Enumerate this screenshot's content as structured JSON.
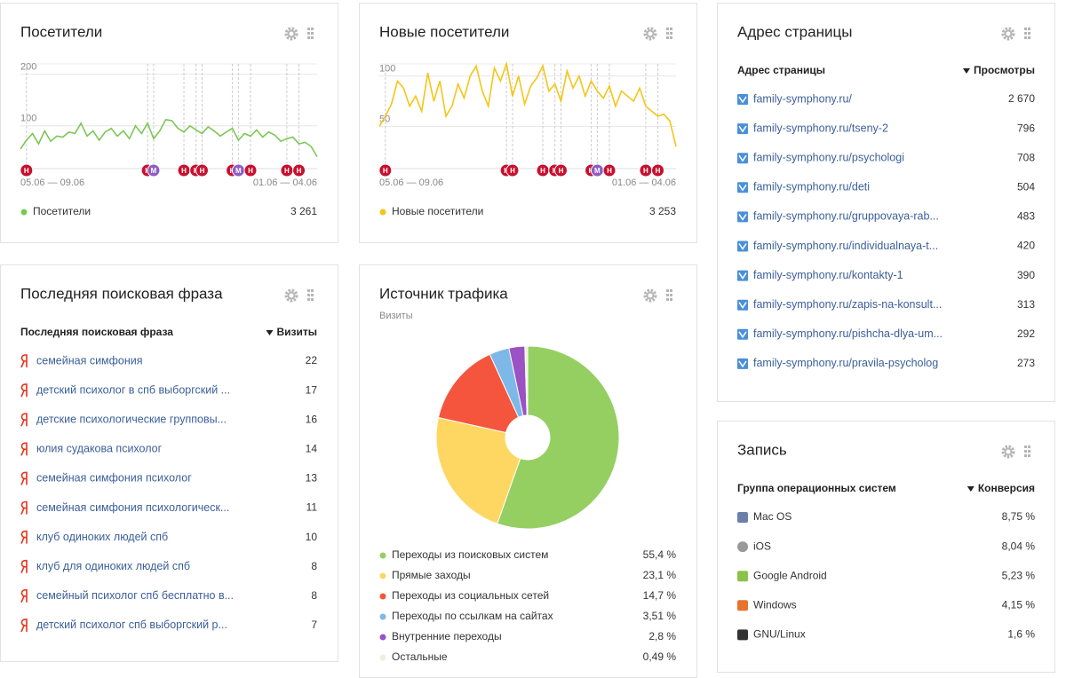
{
  "chart_data": [
    {
      "type": "line",
      "title": "Посетители",
      "categories": [
        "05.06 — 09.06",
        null,
        null,
        null,
        null,
        null,
        null,
        null,
        null,
        null,
        null,
        null,
        null,
        null,
        null,
        null,
        null,
        null,
        null,
        null,
        null,
        null,
        null,
        null,
        null,
        null,
        null,
        null,
        null,
        null,
        null,
        null,
        null,
        null,
        null,
        null,
        null,
        null,
        null,
        null,
        null,
        null,
        null,
        null,
        null,
        null,
        null,
        null,
        null,
        "01.06 — 04.06"
      ],
      "series": [
        {
          "name": "Посетители",
          "color": "#7cc756",
          "total": {
            "value": 3261,
            "label": "3 261"
          },
          "values": [
            55,
            72,
            85,
            65,
            90,
            70,
            80,
            78,
            88,
            85,
            105,
            80,
            90,
            72,
            88,
            95,
            80,
            90,
            75,
            100,
            85,
            105,
            75,
            90,
            112,
            110,
            95,
            88,
            100,
            92,
            85,
            98,
            90,
            80,
            88,
            95,
            72,
            85,
            80,
            92,
            78,
            88,
            82,
            70,
            75,
            78,
            65,
            68,
            60,
            40
          ]
        }
      ],
      "ylim": [
        17,
        220
      ],
      "yticks": [
        100,
        200
      ],
      "events": [
        {
          "x": 1,
          "label": "Н"
        },
        {
          "x": 21,
          "label": "Н"
        },
        {
          "x": 22,
          "label": "М"
        },
        {
          "x": 27,
          "label": "Н"
        },
        {
          "x": 29,
          "label": "Н"
        },
        {
          "x": 30,
          "label": "Н"
        },
        {
          "x": 35,
          "label": "Н"
        },
        {
          "x": 36,
          "label": "М"
        },
        {
          "x": 38,
          "label": "Н"
        },
        {
          "x": 44,
          "label": "Н"
        },
        {
          "x": 46,
          "label": "Н"
        }
      ]
    },
    {
      "type": "line",
      "title": "Новые посетители",
      "categories": [
        "05.06 — 09.06",
        null,
        null,
        null,
        null,
        null,
        null,
        null,
        null,
        null,
        null,
        null,
        null,
        null,
        null,
        null,
        null,
        null,
        null,
        null,
        null,
        null,
        null,
        null,
        null,
        null,
        null,
        null,
        null,
        null,
        null,
        null,
        null,
        null,
        null,
        null,
        null,
        null,
        null,
        null,
        null,
        null,
        null,
        null,
        null,
        null,
        null,
        null,
        null,
        "01.06 — 04.06"
      ],
      "series": [
        {
          "name": "Новые посетители",
          "color": "#f5c518",
          "total": {
            "value": 3253,
            "label": "3 253"
          },
          "values": [
            50,
            60,
            72,
            95,
            88,
            70,
            80,
            65,
            103,
            75,
            95,
            60,
            70,
            92,
            78,
            100,
            110,
            85,
            70,
            108,
            95,
            112,
            80,
            100,
            72,
            90,
            98,
            110,
            85,
            92,
            75,
            105,
            88,
            100,
            80,
            95,
            85,
            78,
            90,
            70,
            85,
            80,
            75,
            88,
            70,
            65,
            60,
            62,
            55,
            30
          ]
        }
      ],
      "ylim": [
        8,
        112
      ],
      "yticks": [
        50,
        100
      ],
      "events": [
        {
          "x": 1,
          "label": "Н"
        },
        {
          "x": 21,
          "label": "Н"
        },
        {
          "x": 22,
          "label": "Н"
        },
        {
          "x": 27,
          "label": "Н"
        },
        {
          "x": 29,
          "label": "Н"
        },
        {
          "x": 30,
          "label": "Н"
        },
        {
          "x": 35,
          "label": "Н"
        },
        {
          "x": 36,
          "label": "М"
        },
        {
          "x": 38,
          "label": "Н"
        },
        {
          "x": 44,
          "label": "Н"
        },
        {
          "x": 46,
          "label": "Н"
        }
      ]
    },
    {
      "type": "pie",
      "title": "Источник трафика",
      "subtitle": "Визиты",
      "categories": [
        "Переходы из поисковых систем",
        "Прямые заходы",
        "Переходы из социальных сетей",
        "Переходы по ссылкам на сайтах",
        "Внутренние переходы",
        "Остальные"
      ],
      "values": [
        55.4,
        23.1,
        14.7,
        3.51,
        2.8,
        0.49
      ],
      "value_labels": [
        "55,4 %",
        "23,1 %",
        "14,7 %",
        "3,51 %",
        "2,8 %",
        "0,49 %"
      ],
      "colors": [
        "#95cf62",
        "#fdd762",
        "#f4553c",
        "#7db8e8",
        "#9b52c2",
        "#eef0dd"
      ]
    }
  ],
  "pages_widget": {
    "title": "Адрес страницы",
    "columns": [
      "Адрес страницы",
      "Просмотры"
    ],
    "rows": [
      [
        "family-symphony.ru/",
        "2 670"
      ],
      [
        "family-symphony.ru/tseny-2",
        "796"
      ],
      [
        "family-symphony.ru/psychologi",
        "708"
      ],
      [
        "family-symphony.ru/deti",
        "504"
      ],
      [
        "family-symphony.ru/gruppovaya-rab...",
        "483"
      ],
      [
        "family-symphony.ru/individualnaya-t...",
        "420"
      ],
      [
        "family-symphony.ru/kontakty-1",
        "390"
      ],
      [
        "family-symphony.ru/zapis-na-konsult...",
        "313"
      ],
      [
        "family-symphony.ru/pishcha-dlya-um...",
        "292"
      ],
      [
        "family-symphony.ru/pravila-psycholog",
        "273"
      ]
    ]
  },
  "search_widget": {
    "title": "Последняя поисковая фраза",
    "columns": [
      "Последняя поисковая фраза",
      "Визиты"
    ],
    "rows": [
      [
        "семейная симфония",
        "22"
      ],
      [
        "детский психолог в спб выборгский ...",
        "17"
      ],
      [
        "детские психологические групповы...",
        "16"
      ],
      [
        "юлия судакова психолог",
        "14"
      ],
      [
        "семейная симфония психолог",
        "13"
      ],
      [
        "семейная симфония психологическ...",
        "11"
      ],
      [
        "клуб одиноких людей спб",
        "10"
      ],
      [
        "клуб для одиноких людей спб",
        "8"
      ],
      [
        "семейный психолог спб бесплатно в...",
        "8"
      ],
      [
        "детский психолог спб выборгский р...",
        "7"
      ]
    ]
  },
  "os_widget": {
    "title": "Запись",
    "columns": [
      "Группа операционных систем",
      "Конверсия"
    ],
    "rows": [
      [
        "Mac OS",
        "8,75 %"
      ],
      [
        "iOS",
        "8,04 %"
      ],
      [
        "Google Android",
        "5,23 %"
      ],
      [
        "Windows",
        "4,15 %"
      ],
      [
        "GNU/Linux",
        "1,6 %"
      ]
    ]
  }
}
